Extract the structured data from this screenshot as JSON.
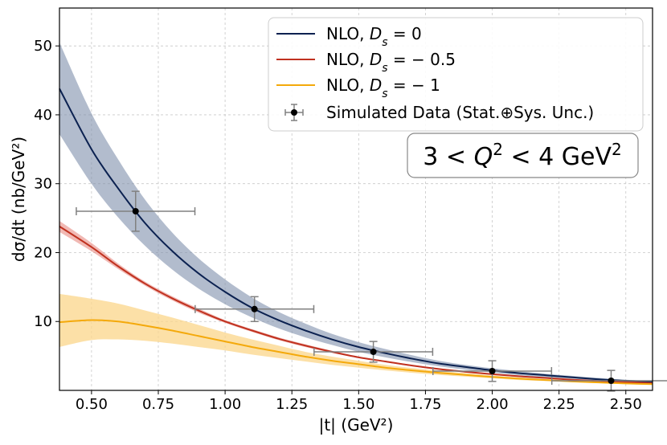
{
  "chart_data": {
    "type": "line",
    "xlabel": "|t| (GeV²)",
    "ylabel": "dσ/dt (nb/GeV²)",
    "xlim": [
      0.38,
      2.6
    ],
    "ylim": [
      0,
      55.5
    ],
    "x_ticks": [
      "0.50",
      "0.75",
      "1.00",
      "1.25",
      "1.50",
      "1.75",
      "2.00",
      "2.25",
      "2.50"
    ],
    "y_ticks": [
      "10",
      "20",
      "30",
      "40",
      "50"
    ],
    "grid": true,
    "legend_position": "top-right",
    "annotation": "3 < Q² < 4 GeV²",
    "series": [
      {
        "name": "NLO, D_s = 0",
        "color": "#0b2150",
        "band_color": "#7f8fab",
        "x": [
          0.38,
          0.5,
          0.6,
          0.7,
          0.8,
          0.9,
          1.0,
          1.1,
          1.2,
          1.3,
          1.4,
          1.5,
          1.6,
          1.7,
          1.8,
          1.9,
          2.0,
          2.1,
          2.2,
          2.3,
          2.4,
          2.5,
          2.6
        ],
        "y": [
          43.8,
          35.0,
          29.3,
          24.3,
          20.3,
          17.0,
          14.3,
          12.0,
          10.2,
          8.7,
          7.4,
          6.3,
          5.4,
          4.6,
          3.9,
          3.4,
          2.9,
          2.5,
          2.2,
          1.9,
          1.6,
          1.4,
          1.25
        ],
        "y_lower": [
          37.2,
          30.0,
          25.1,
          21.0,
          17.6,
          14.8,
          12.5,
          10.6,
          9.0,
          7.7,
          6.6,
          5.6,
          4.8,
          4.1,
          3.5,
          3.0,
          2.6,
          2.2,
          1.9,
          1.7,
          1.45,
          1.25,
          1.1
        ],
        "y_upper": [
          50.5,
          40.2,
          33.5,
          27.7,
          23.0,
          19.2,
          16.1,
          13.5,
          11.4,
          9.7,
          8.2,
          7.0,
          6.0,
          5.1,
          4.3,
          3.7,
          3.2,
          2.8,
          2.4,
          2.1,
          1.8,
          1.55,
          1.4
        ]
      },
      {
        "name": "NLO, D_s = −0.5",
        "color": "#c0311f",
        "band_color": "#e57f77",
        "x": [
          0.38,
          0.5,
          0.6,
          0.7,
          0.8,
          0.9,
          1.0,
          1.1,
          1.2,
          1.3,
          1.4,
          1.5,
          1.6,
          1.7,
          1.8,
          1.9,
          2.0,
          2.1,
          2.2,
          2.3,
          2.4,
          2.5,
          2.6
        ],
        "y": [
          23.8,
          20.8,
          18.0,
          15.5,
          13.4,
          11.6,
          10.0,
          8.7,
          7.5,
          6.5,
          5.6,
          4.8,
          4.2,
          3.6,
          3.1,
          2.7,
          2.35,
          2.05,
          1.8,
          1.55,
          1.35,
          1.2,
          1.05
        ],
        "y_lower": [
          23.0,
          20.2,
          17.6,
          15.2,
          13.1,
          11.3,
          9.8,
          8.5,
          7.3,
          6.3,
          5.45,
          4.7,
          4.1,
          3.5,
          3.0,
          2.6,
          2.25,
          1.95,
          1.7,
          1.5,
          1.3,
          1.15,
          1.0
        ],
        "y_upper": [
          24.6,
          21.4,
          18.4,
          15.8,
          13.7,
          11.9,
          10.2,
          8.9,
          7.7,
          6.7,
          5.75,
          4.9,
          4.3,
          3.7,
          3.2,
          2.8,
          2.45,
          2.15,
          1.9,
          1.6,
          1.4,
          1.25,
          1.1
        ]
      },
      {
        "name": "NLO, D_s = −1",
        "color": "#f4a90b",
        "band_color": "#fbd58a",
        "x": [
          0.38,
          0.5,
          0.6,
          0.7,
          0.8,
          0.9,
          1.0,
          1.1,
          1.2,
          1.3,
          1.4,
          1.5,
          1.6,
          1.7,
          1.8,
          1.9,
          2.0,
          2.1,
          2.2,
          2.3,
          2.4,
          2.5,
          2.6
        ],
        "y": [
          9.9,
          10.2,
          10.0,
          9.4,
          8.7,
          7.9,
          7.1,
          6.3,
          5.6,
          4.9,
          4.3,
          3.8,
          3.3,
          2.9,
          2.55,
          2.25,
          1.95,
          1.7,
          1.5,
          1.3,
          1.15,
          1.0,
          0.9
        ],
        "y_lower": [
          6.3,
          7.3,
          7.4,
          7.2,
          6.8,
          6.3,
          5.8,
          5.2,
          4.7,
          4.2,
          3.7,
          3.3,
          2.9,
          2.55,
          2.25,
          2.0,
          1.75,
          1.5,
          1.35,
          1.2,
          1.05,
          0.9,
          0.8
        ],
        "y_upper": [
          14.0,
          13.3,
          12.6,
          11.6,
          10.6,
          9.5,
          8.4,
          7.4,
          6.5,
          5.6,
          4.9,
          4.3,
          3.7,
          3.25,
          2.85,
          2.5,
          2.15,
          1.9,
          1.65,
          1.45,
          1.25,
          1.1,
          1.0
        ]
      }
    ],
    "data_points": {
      "name": "Simulated Data (Stat.⊕Sys. Unc.)",
      "color": "#000000",
      "errorbar_color": "#808080",
      "x": [
        0.665,
        1.11,
        1.555,
        2.0,
        2.445
      ],
      "y": [
        26.0,
        11.8,
        5.6,
        2.8,
        1.4
      ],
      "x_err": [
        0.222,
        0.222,
        0.222,
        0.222,
        0.222
      ],
      "y_err": [
        2.9,
        1.8,
        1.5,
        1.5,
        1.5
      ]
    }
  }
}
